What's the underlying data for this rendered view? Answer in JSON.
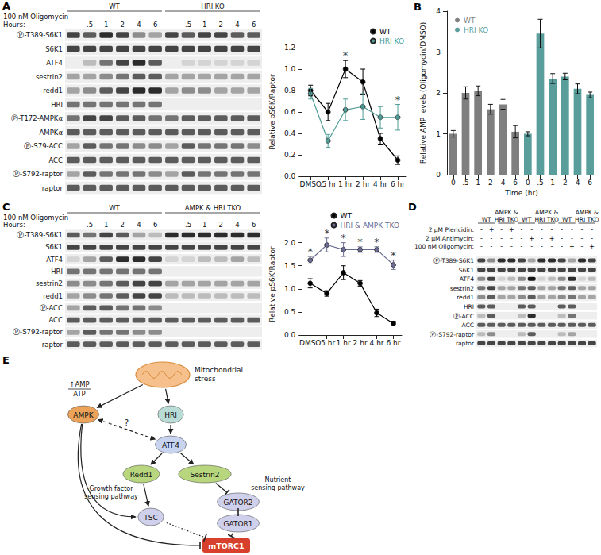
{
  "panel_labels": [
    "A",
    "B",
    "C",
    "D",
    "E"
  ],
  "blots": [
    {
      "treatment": "100 nM Oligomycin",
      "lane_header": "Hours:",
      "groups": [
        {
          "label": "WT",
          "lanes": 6
        },
        {
          "label": "HRI KO",
          "lanes": 6
        }
      ],
      "lane_labels": [
        "-",
        ".5",
        "1",
        "2",
        "4",
        "6",
        "-",
        ".5",
        "1",
        "2",
        "4",
        "6"
      ],
      "rows": [
        {
          "label": "Ⓟ-T389-S6K1",
          "bands": [
            7,
            6,
            8,
            7,
            4,
            3,
            7,
            6,
            7,
            7,
            6,
            6
          ]
        },
        {
          "label": "S6K1",
          "bands": [
            7,
            7,
            7,
            7,
            7,
            7,
            7,
            7,
            7,
            7,
            7,
            7
          ]
        },
        {
          "label": "ATF4",
          "bands": [
            0,
            2,
            5,
            7,
            8,
            6,
            0,
            1,
            1,
            1,
            1,
            1
          ]
        },
        {
          "label": "sestrin2",
          "bands": [
            3,
            3,
            4,
            5,
            6,
            6,
            3,
            3,
            3,
            3,
            3,
            3
          ]
        },
        {
          "label": "redd1",
          "bands": [
            3,
            4,
            6,
            7,
            8,
            8,
            3,
            4,
            4,
            3,
            3,
            3
          ]
        },
        {
          "label": "HRI",
          "bands": [
            5,
            5,
            5,
            5,
            5,
            5,
            0,
            0,
            0,
            0,
            0,
            0
          ]
        },
        {
          "label": "Ⓟ-T172-AMPKα",
          "bands": [
            5,
            7,
            7,
            6,
            6,
            5,
            5,
            6,
            6,
            6,
            6,
            6
          ]
        },
        {
          "label": "AMPKα",
          "bands": [
            6,
            6,
            6,
            6,
            6,
            6,
            6,
            6,
            6,
            6,
            6,
            6
          ]
        },
        {
          "label": "Ⓟ-S79-ACC",
          "bands": [
            3,
            6,
            5,
            5,
            4,
            4,
            3,
            6,
            5,
            5,
            5,
            4
          ]
        },
        {
          "label": "ACC",
          "bands": [
            6,
            6,
            6,
            6,
            6,
            6,
            6,
            6,
            6,
            6,
            6,
            6
          ]
        },
        {
          "label": "Ⓟ-S792-raptor",
          "bands": [
            3,
            6,
            5,
            5,
            5,
            4,
            3,
            6,
            5,
            5,
            5,
            5
          ]
        },
        {
          "label": "raptor",
          "bands": [
            6,
            6,
            6,
            6,
            6,
            6,
            6,
            6,
            6,
            6,
            6,
            6
          ]
        }
      ]
    },
    {
      "treatment": "100 nM Oligomycin",
      "lane_header": "Hours:",
      "groups": [
        {
          "label": "WT",
          "lanes": 6
        },
        {
          "label": "AMPK & HRI TKO",
          "lanes": 6
        }
      ],
      "lane_labels": [
        "-",
        ".5",
        "1",
        "2",
        "4",
        "6",
        "-",
        ".5",
        "1",
        "2",
        "4",
        "6"
      ],
      "rows": [
        {
          "label": "Ⓟ-T389-S6K1",
          "bands": [
            6,
            5,
            7,
            6,
            3,
            2,
            8,
            8,
            8,
            8,
            8,
            8
          ]
        },
        {
          "label": "S6K1",
          "bands": [
            7,
            7,
            7,
            7,
            7,
            7,
            7,
            7,
            7,
            7,
            7,
            7
          ]
        },
        {
          "label": "ATF4",
          "bands": [
            1,
            3,
            6,
            8,
            8,
            7,
            1,
            1,
            2,
            2,
            3,
            2
          ]
        },
        {
          "label": "HRI",
          "bands": [
            5,
            5,
            5,
            5,
            5,
            5,
            0,
            0,
            0,
            0,
            0,
            0
          ]
        },
        {
          "label": "sestrin2",
          "bands": [
            4,
            4,
            5,
            6,
            7,
            7,
            3,
            3,
            3,
            3,
            3,
            3
          ]
        },
        {
          "label": "redd1",
          "bands": [
            3,
            4,
            5,
            6,
            7,
            7,
            2,
            2,
            2,
            2,
            2,
            2
          ]
        },
        {
          "label": "Ⓟ-ACC",
          "bands": [
            3,
            6,
            6,
            5,
            5,
            4,
            0,
            0,
            0,
            0,
            0,
            0
          ]
        },
        {
          "label": "ACC",
          "bands": [
            6,
            6,
            6,
            6,
            6,
            6,
            6,
            6,
            6,
            6,
            6,
            6
          ]
        },
        {
          "label": "Ⓟ-S792-raptor",
          "bands": [
            3,
            6,
            5,
            5,
            4,
            4,
            0,
            0,
            0,
            0,
            0,
            0
          ]
        },
        {
          "label": "raptor",
          "bands": [
            6,
            6,
            6,
            6,
            6,
            6,
            6,
            6,
            6,
            6,
            6,
            6
          ]
        }
      ]
    },
    {
      "groups": [
        {
          "label": "WT",
          "lanes": 2
        },
        {
          "label": "AMPK & HRI TKO",
          "lanes": 2
        },
        {
          "label": "WT",
          "lanes": 2
        },
        {
          "label": "AMPK & HRI TKO",
          "lanes": 2
        },
        {
          "label": "WT",
          "lanes": 2
        },
        {
          "label": "AMPK & HRI TKO",
          "lanes": 2
        }
      ],
      "treatments": [
        {
          "label": "2 µM Piericidin:",
          "signs": [
            "-",
            "+",
            "-",
            "+",
            "-",
            "-",
            "-",
            "-",
            "-",
            "-",
            "-",
            "-"
          ]
        },
        {
          "label": "2 µM Antimycin:",
          "signs": [
            "-",
            "-",
            "-",
            "-",
            "-",
            "+",
            "-",
            "+",
            "-",
            "-",
            "-",
            "-"
          ]
        },
        {
          "label": "100 nM Oligomycin:",
          "signs": [
            "-",
            "-",
            "-",
            "-",
            "-",
            "-",
            "-",
            "-",
            "-",
            "+",
            "-",
            "+"
          ]
        }
      ],
      "rows": [
        {
          "label": "Ⓟ-T389-S6K1",
          "bands": [
            7,
            4,
            8,
            8,
            7,
            3,
            8,
            8,
            7,
            3,
            8,
            7
          ]
        },
        {
          "label": "S6K1",
          "bands": [
            7,
            7,
            7,
            7,
            7,
            7,
            7,
            7,
            7,
            7,
            7,
            7
          ]
        },
        {
          "label": "ATF4",
          "bands": [
            4,
            7,
            1,
            2,
            4,
            9,
            1,
            2,
            4,
            8,
            1,
            2
          ]
        },
        {
          "label": "sestrin2",
          "bands": [
            5,
            7,
            3,
            3,
            5,
            6,
            3,
            3,
            5,
            6,
            3,
            3
          ]
        },
        {
          "label": "redd1",
          "bands": [
            4,
            6,
            3,
            3,
            4,
            6,
            3,
            3,
            4,
            5,
            3,
            3
          ]
        },
        {
          "label": "HRI",
          "bands": [
            6,
            6,
            0,
            0,
            6,
            6,
            0,
            0,
            6,
            6,
            0,
            0
          ]
        },
        {
          "label": "Ⓟ-ACC",
          "bands": [
            2,
            6,
            0,
            0,
            2,
            8,
            0,
            0,
            2,
            5,
            0,
            0
          ]
        },
        {
          "label": "ACC",
          "bands": [
            6,
            6,
            6,
            6,
            6,
            6,
            6,
            6,
            6,
            6,
            6,
            6
          ]
        },
        {
          "label": "Ⓟ-S792-raptor",
          "bands": [
            2,
            4,
            0,
            0,
            2,
            6,
            0,
            0,
            2,
            3,
            0,
            0
          ]
        },
        {
          "label": "raptor",
          "bands": [
            7,
            7,
            7,
            7,
            7,
            7,
            7,
            7,
            7,
            7,
            7,
            7
          ]
        }
      ]
    }
  ],
  "chart_data": [
    {
      "type": "line",
      "categories": [
        "DMSO",
        ".5 hr",
        "1 hr",
        "2 hr",
        "4 hr",
        "6 hr"
      ],
      "y_label": "Relative pS6K/Raptor",
      "ylim": [
        0,
        1.2
      ],
      "yticks": [
        {
          "value": 0,
          "label": "0.0"
        },
        0.2,
        0.4,
        0.6,
        0.8,
        {
          "value": 1,
          "label": "1.0"
        },
        1.2
      ],
      "grid": false,
      "legend": "upper right",
      "marker": "circle",
      "series": [
        {
          "name": "WT",
          "color": "#000000",
          "values": [
            0.8,
            0.6,
            1.0,
            0.88,
            0.35,
            0.15
          ],
          "errors": [
            0.05,
            0.08,
            0.08,
            0.12,
            0.05,
            0.04
          ]
        },
        {
          "name": "HRI KO",
          "color": "#4f9c97",
          "values": [
            0.77,
            0.33,
            0.62,
            0.65,
            0.55,
            0.55
          ],
          "errors": [
            0.05,
            0.06,
            0.1,
            0.12,
            0.1,
            0.12
          ]
        }
      ],
      "annotations": [
        {
          "x": "1 hr",
          "text": "*"
        },
        {
          "x": "6 hr",
          "text": "*"
        }
      ]
    },
    {
      "type": "bar",
      "categories": [
        "0",
        ".5",
        "1",
        "2",
        "4",
        "6",
        "0",
        ".5",
        "1",
        "2",
        "4",
        "6"
      ],
      "x_label": "Time (hr)",
      "y_label": "Relative AMP levels (Oligomycin/DMSO)",
      "ylim": [
        0,
        4
      ],
      "yticks": [
        0,
        1,
        2,
        3,
        4
      ],
      "grid": false,
      "legend": "upper left",
      "series": [
        {
          "name": "WT",
          "color": "#7f7f7f",
          "values": [
            1.0,
            2.0,
            2.05,
            1.6,
            1.72,
            1.05,
            null,
            null,
            null,
            null,
            null,
            null
          ],
          "errors": [
            0.08,
            0.15,
            0.12,
            0.12,
            0.12,
            0.15,
            null,
            null,
            null,
            null,
            null,
            null
          ]
        },
        {
          "name": "HRI KO",
          "color": "#5a9e9b",
          "values": [
            null,
            null,
            null,
            null,
            null,
            null,
            1.0,
            3.45,
            2.35,
            2.4,
            2.1,
            1.95
          ],
          "errors": [
            null,
            null,
            null,
            null,
            null,
            null,
            0.05,
            0.35,
            0.12,
            0.08,
            0.12,
            0.07
          ]
        }
      ]
    },
    {
      "type": "line",
      "categories": [
        "DMSO",
        ".5 hr",
        "1 hr",
        "2 hr",
        "4 hr",
        "6 hr"
      ],
      "y_label": "Relative pS6K/Raptor",
      "ylim": [
        0,
        2.2
      ],
      "yticks": [
        {
          "value": 0,
          "label": "0.0"
        },
        0.5,
        {
          "value": 1,
          "label": "1.0"
        },
        1.5,
        {
          "value": 2,
          "label": "2.0"
        }
      ],
      "grid": false,
      "legend": "upper right",
      "marker": "circle",
      "series": [
        {
          "name": "WT",
          "color": "#000000",
          "values": [
            1.12,
            0.9,
            1.35,
            1.12,
            0.48,
            0.25
          ],
          "errors": [
            0.1,
            0.06,
            0.15,
            0.06,
            0.08,
            0.05
          ]
        },
        {
          "name": "HRI & AMPK TKO",
          "color": "#6c6c93",
          "values": [
            1.62,
            1.95,
            1.85,
            1.85,
            1.85,
            1.52
          ],
          "errors": [
            0.08,
            0.15,
            0.15,
            0.06,
            0.06,
            0.1
          ]
        }
      ],
      "annotations": [
        {
          "x": "DMSO",
          "text": "*"
        },
        {
          "x": ".5 hr",
          "text": "*"
        },
        {
          "x": "1 hr",
          "text": "*"
        },
        {
          "x": "2 hr",
          "text": "*"
        },
        {
          "x": "4 hr",
          "text": "*"
        },
        {
          "x": "6 hr",
          "text": "*"
        }
      ]
    }
  ],
  "diagram": {
    "nodes": [
      {
        "id": "mito",
        "label": "Mitochondrial stress"
      },
      {
        "id": "ampk",
        "label": "AMPK"
      },
      {
        "id": "hri",
        "label": "HRI"
      },
      {
        "id": "atf4",
        "label": "ATF4"
      },
      {
        "id": "redd1",
        "label": "Redd1"
      },
      {
        "id": "sestrin2",
        "label": "Sestrin2"
      },
      {
        "id": "gator2",
        "label": "GATOR2"
      },
      {
        "id": "gator1",
        "label": "GATOR1"
      },
      {
        "id": "tsc",
        "label": "TSC"
      },
      {
        "id": "mtorc1",
        "label": "mTORC1"
      }
    ],
    "edges": [
      {
        "from": "mito",
        "to": "ampk",
        "kind": "arrow"
      },
      {
        "from": "mito",
        "to": "hri",
        "kind": "arrow"
      },
      {
        "from": "hri",
        "to": "atf4",
        "kind": "arrow"
      },
      {
        "from": "ampk",
        "to": "atf4",
        "kind": "both",
        "line_style": "dashed",
        "label": "?"
      },
      {
        "from": "atf4",
        "to": "redd1",
        "kind": "arrow"
      },
      {
        "from": "atf4",
        "to": "sestrin2",
        "kind": "arrow"
      },
      {
        "from": "redd1",
        "to": "tsc",
        "kind": "arrow"
      },
      {
        "from": "sestrin2",
        "to": "gator2",
        "kind": "inhibit"
      },
      {
        "from": "gator2",
        "to": "gator1",
        "kind": "inhibit"
      },
      {
        "from": "gator1",
        "to": "mtorc1",
        "kind": "inhibit"
      },
      {
        "from": "tsc",
        "to": "mtorc1",
        "kind": "inhibit",
        "line_style": "dotted"
      },
      {
        "from": "ampk",
        "to": "tsc",
        "kind": "arrow",
        "curved": true
      },
      {
        "from": "ampk",
        "to": "mtorc1",
        "kind": "inhibit",
        "curved": true
      }
    ],
    "ratio": {
      "numerator": "↑AMP",
      "denominator": "ATP"
    },
    "texts": [
      "Growth factor sensing pathway",
      "Nutrient sensing pathway"
    ]
  }
}
